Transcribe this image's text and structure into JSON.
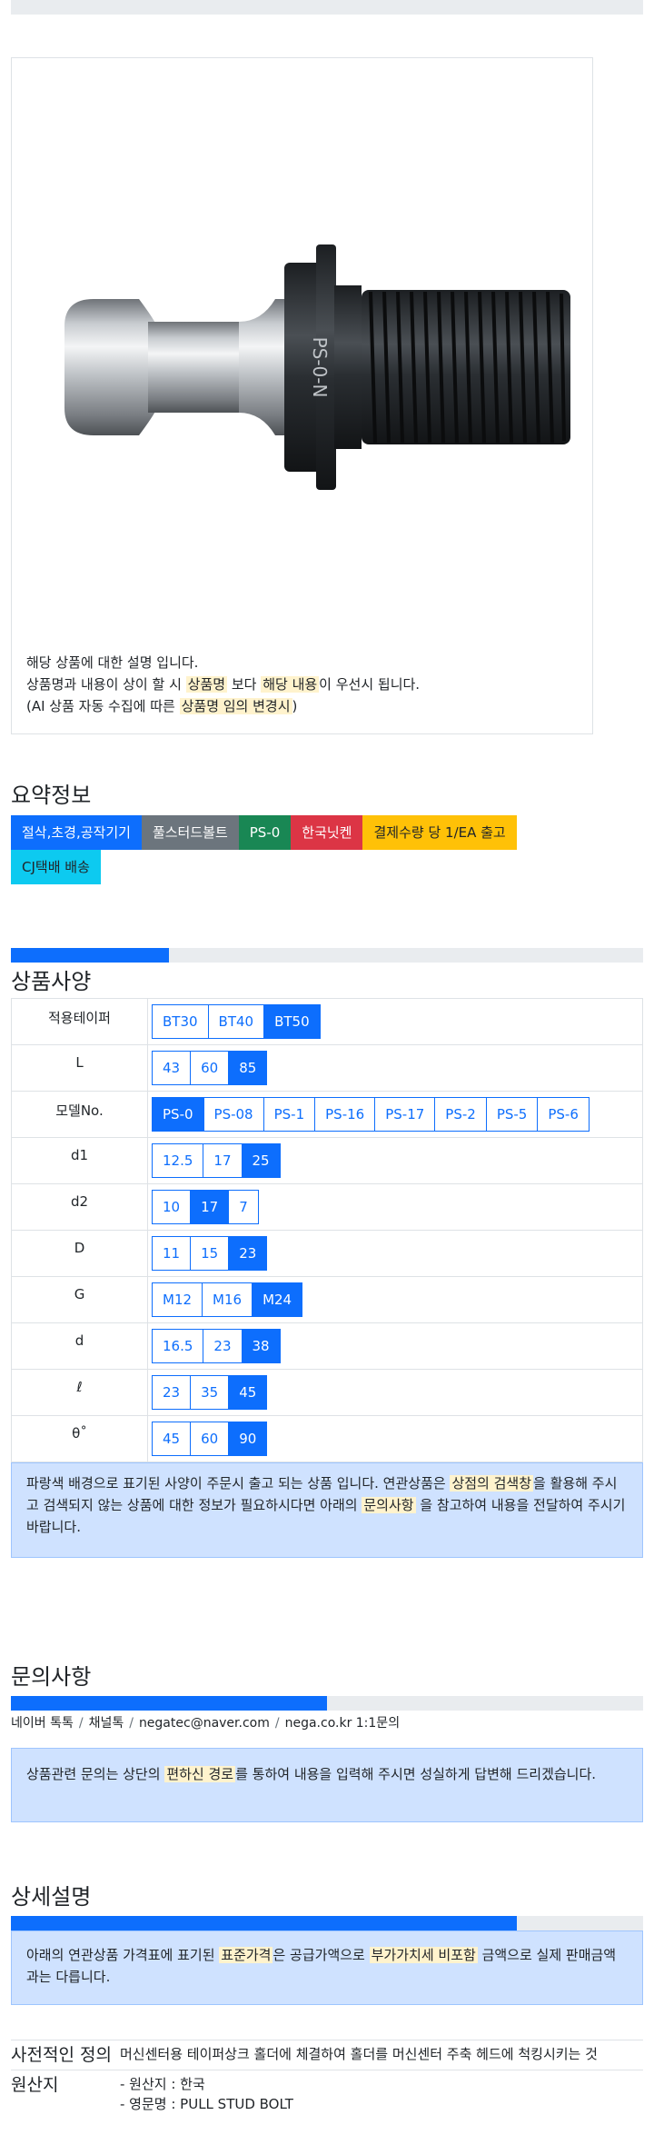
{
  "product": {
    "image_alt": "PS-0 pull stud bolt",
    "desc": {
      "line1": "해당 상품에 대한 설명 입니다.",
      "line2_a": "상품명과 내용이 상이 할 시 ",
      "line2_hl1": "상품명",
      "line2_b": " 보다 ",
      "line2_hl2": "해당 내용",
      "line2_c": "이 우선시 됩니다.",
      "line3_a": "(AI 상품 자동 수집에 따른 ",
      "line3_hl": "상품명 임의 변경시",
      "line3_b": ")"
    }
  },
  "summary": {
    "title": "요약정보",
    "badges": [
      {
        "label": "절삭,초경,공작기기",
        "color": "blue"
      },
      {
        "label": "풀스터드볼트",
        "color": "gray"
      },
      {
        "label": "PS-0",
        "color": "green"
      },
      {
        "label": "한국닛켄",
        "color": "red"
      },
      {
        "label": "결제수량 당 1/EA 출고",
        "color": "yellow"
      },
      {
        "label": "CJ택배 배송",
        "color": "cyan"
      }
    ]
  },
  "specs": {
    "title": "상품사양",
    "progress_pct": 25,
    "rows": [
      {
        "label": "적용테이퍼",
        "options": [
          "BT30",
          "BT40",
          "BT50"
        ],
        "selected": "BT50"
      },
      {
        "label": "L",
        "options": [
          "43",
          "60",
          "85"
        ],
        "selected": "85"
      },
      {
        "label": "모델No.",
        "options": [
          "PS-0",
          "PS-08",
          "PS-1",
          "PS-16",
          "PS-17",
          "PS-2",
          "PS-5",
          "PS-6"
        ],
        "selected": "PS-0"
      },
      {
        "label": "d1",
        "options": [
          "12.5",
          "17",
          "25"
        ],
        "selected": "25"
      },
      {
        "label": "d2",
        "options": [
          "10",
          "17",
          "7"
        ],
        "selected": "17"
      },
      {
        "label": "D",
        "options": [
          "11",
          "15",
          "23"
        ],
        "selected": "23"
      },
      {
        "label": "G",
        "options": [
          "M12",
          "M16",
          "M24"
        ],
        "selected": "M24"
      },
      {
        "label": "d",
        "options": [
          "16.5",
          "23",
          "38"
        ],
        "selected": "38"
      },
      {
        "label": "ℓ",
        "options": [
          "23",
          "35",
          "45"
        ],
        "selected": "45"
      },
      {
        "label": "θ˚",
        "options": [
          "45",
          "60",
          "90"
        ],
        "selected": "90"
      }
    ],
    "notice": {
      "a": "파랑색 배경으로 표기된 사양이 주문시 출고 되는 상품 입니다. 연관상품은 ",
      "hl1": "상점의 검색창",
      "b": "을 활용해 주시고 검색되지 않는 상품에 대한 정보가 필요하시다면 아래의 ",
      "hl2": "문의사항",
      "c": " 을 참고하여 내용을 전달하여 주시기 바랍니다."
    }
  },
  "inquiry": {
    "title": "문의사항",
    "progress_pct": 50,
    "channels": [
      "네이버 톡톡",
      "채널톡",
      "negatec@naver.com",
      "nega.co.kr 1:1문의"
    ],
    "notice": {
      "a": "상품관련 문의는 상단의 ",
      "hl": "편하신 경로",
      "b": "를 통하여 내용을 입력해 주시면 성실하게 답변해 드리겠습니다."
    }
  },
  "detail": {
    "title": "상세설명",
    "progress_pct": 80,
    "notice": {
      "a": "아래의 연관상품 가격표에 표기된 ",
      "hl1": "표준가격",
      "b": "은 공급가액으로 ",
      "hl2": "부가가치세 비포함",
      "c": " 금액으로 실제 판매금액과는 다릅니다."
    },
    "rows": [
      {
        "label": "사전적인 정의",
        "value": "머신센터용 테이퍼상크 홀더에 체결하여 홀더를 머신센터 주축 헤드에 척킹시키는 것"
      },
      {
        "label": "원산지",
        "lines": [
          "- 원산지 : 한국",
          "- 영문명 : PULL STUD BOLT"
        ]
      }
    ]
  },
  "colors": {
    "primary": "#0d6efd",
    "highlight": "#fff3cd",
    "alert_bg": "#cfe2ff"
  }
}
